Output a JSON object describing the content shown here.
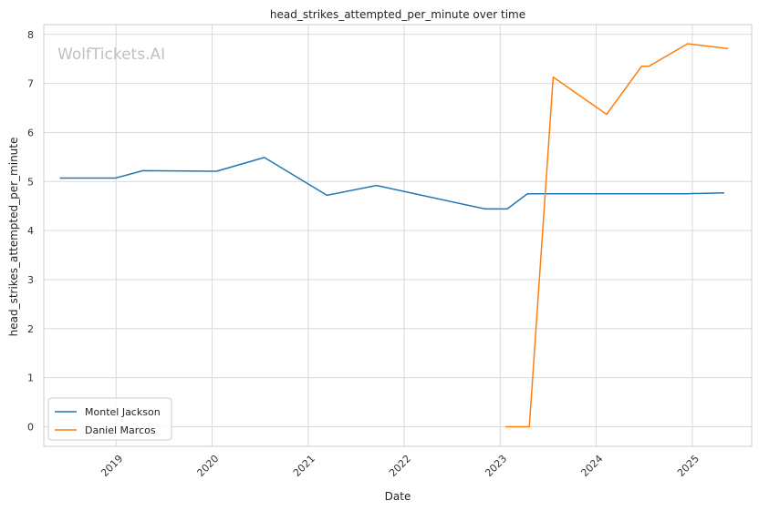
{
  "chart_data": {
    "type": "line",
    "title": "head_strikes_attempted_per_minute over time",
    "xlabel": "Date",
    "ylabel": "head_strikes_attempted_per_minute",
    "watermark": "WolfTickets.AI",
    "x_axis_type": "date",
    "xlim": [
      "2018-04-01",
      "2025-08-15"
    ],
    "ylim": [
      -0.4,
      8.2
    ],
    "x_ticks": [
      {
        "label": "2019",
        "date": "2019-01-01"
      },
      {
        "label": "2020",
        "date": "2020-01-01"
      },
      {
        "label": "2021",
        "date": "2021-01-01"
      },
      {
        "label": "2022",
        "date": "2022-01-01"
      },
      {
        "label": "2023",
        "date": "2023-01-01"
      },
      {
        "label": "2024",
        "date": "2024-01-01"
      },
      {
        "label": "2025",
        "date": "2025-01-01"
      }
    ],
    "y_ticks": [
      0,
      1,
      2,
      3,
      4,
      5,
      6,
      7,
      8
    ],
    "grid": true,
    "legend_position": "lower-left",
    "series": [
      {
        "name": "Montel Jackson",
        "color": "#1f77b4",
        "points": [
          {
            "x": "2018-06-01",
            "y": 5.07
          },
          {
            "x": "2018-12-29",
            "y": 5.07
          },
          {
            "x": "2019-04-13",
            "y": 5.22
          },
          {
            "x": "2020-01-18",
            "y": 5.21
          },
          {
            "x": "2020-07-18",
            "y": 5.49
          },
          {
            "x": "2021-03-13",
            "y": 4.72
          },
          {
            "x": "2021-09-18",
            "y": 4.92
          },
          {
            "x": "2022-11-05",
            "y": 4.44
          },
          {
            "x": "2023-01-28",
            "y": 4.44
          },
          {
            "x": "2023-04-15",
            "y": 4.75
          },
          {
            "x": "2024-06-15",
            "y": 4.75
          },
          {
            "x": "2024-12-07",
            "y": 4.75
          },
          {
            "x": "2025-05-03",
            "y": 4.77
          }
        ]
      },
      {
        "name": "Daniel Marcos",
        "color": "#ff7f0e",
        "points": [
          {
            "x": "2023-01-21",
            "y": 0.0
          },
          {
            "x": "2023-04-22",
            "y": 0.0
          },
          {
            "x": "2023-07-22",
            "y": 7.13
          },
          {
            "x": "2024-02-10",
            "y": 6.37
          },
          {
            "x": "2024-06-22",
            "y": 7.35
          },
          {
            "x": "2024-07-20",
            "y": 7.35
          },
          {
            "x": "2024-12-14",
            "y": 7.81
          },
          {
            "x": "2025-05-17",
            "y": 7.71
          }
        ]
      }
    ]
  }
}
